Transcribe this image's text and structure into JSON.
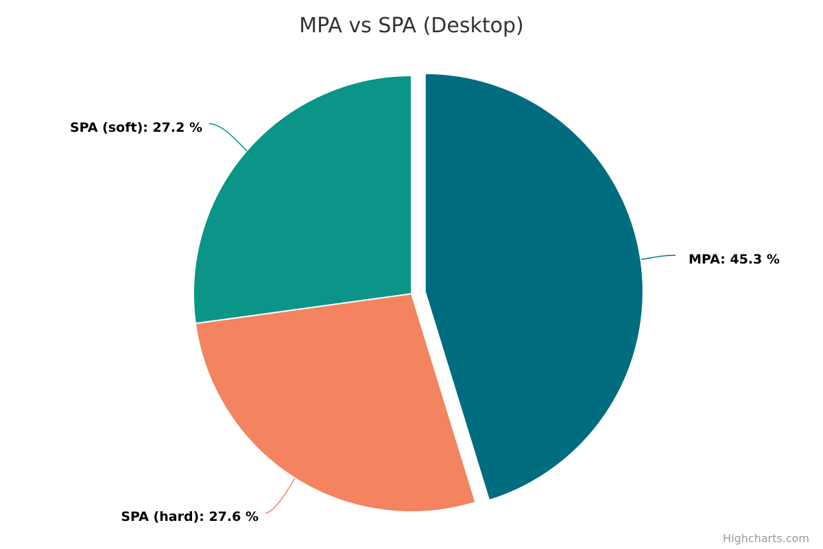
{
  "chart_data": {
    "type": "pie",
    "title": "MPA vs SPA (Desktop)",
    "series": [
      {
        "name": "MPA",
        "value": 45.3,
        "label": "MPA: 45.3 %",
        "color": "#006c80",
        "sliced": true
      },
      {
        "name": "SPA (hard)",
        "value": 27.6,
        "label": "SPA (hard): 27.6 %",
        "color": "#f3845f",
        "sliced": false
      },
      {
        "name": "SPA (soft)",
        "value": 27.2,
        "label": "SPA (soft): 27.2 %",
        "color": "#0a9588",
        "sliced": false
      }
    ]
  },
  "credits": "Highcharts.com"
}
